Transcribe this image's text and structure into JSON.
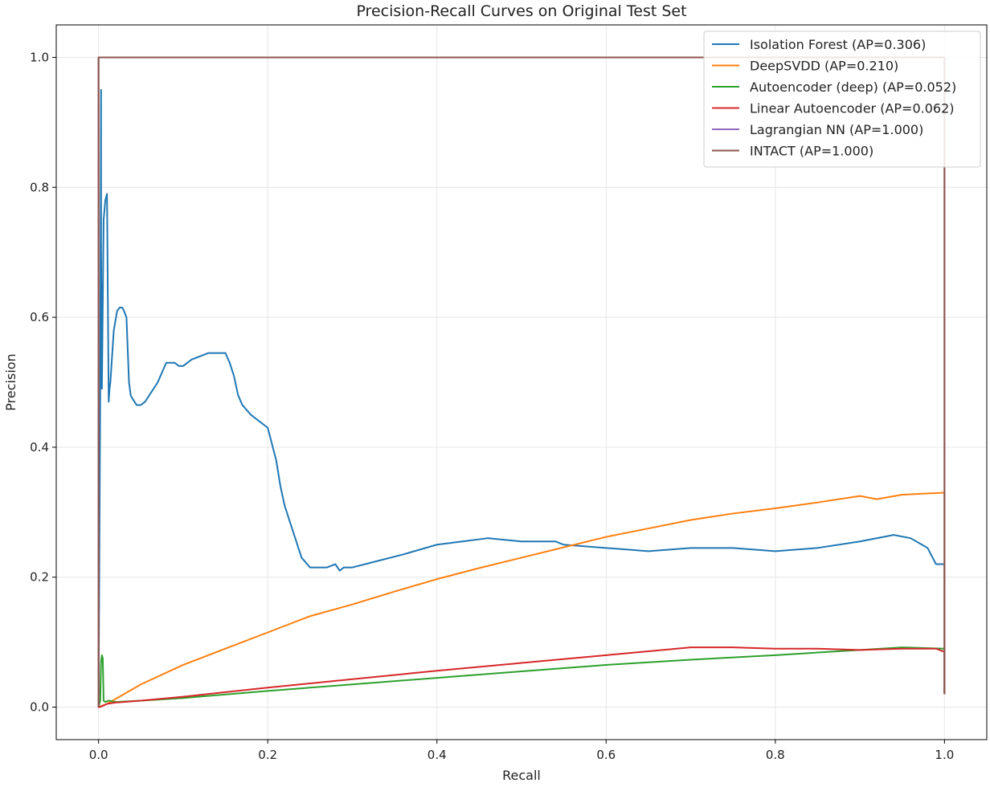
{
  "chart_data": {
    "type": "line",
    "title": "Precision-Recall Curves on Original Test Set",
    "xlabel": "Recall",
    "ylabel": "Precision",
    "xlim": [
      -0.05,
      1.05
    ],
    "ylim": [
      -0.05,
      1.05
    ],
    "xticks": [
      0.0,
      0.2,
      0.4,
      0.6,
      0.8,
      1.0
    ],
    "yticks": [
      0.0,
      0.2,
      0.4,
      0.6,
      0.8,
      1.0
    ],
    "xtick_labels": [
      "0.0",
      "0.2",
      "0.4",
      "0.6",
      "0.8",
      "1.0"
    ],
    "ytick_labels": [
      "0.0",
      "0.2",
      "0.4",
      "0.6",
      "0.8",
      "1.0"
    ],
    "grid": true,
    "legend_position": "top-right",
    "series": [
      {
        "name": "Isolation Forest (AP=0.306)",
        "color": "#1f77b4",
        "x": [
          0.0,
          0.0,
          0.002,
          0.003,
          0.003,
          0.004,
          0.006,
          0.008,
          0.01,
          0.012,
          0.013,
          0.014,
          0.015,
          0.018,
          0.022,
          0.025,
          0.028,
          0.03,
          0.033,
          0.036,
          0.038,
          0.04,
          0.045,
          0.05,
          0.055,
          0.06,
          0.07,
          0.08,
          0.09,
          0.095,
          0.1,
          0.11,
          0.12,
          0.13,
          0.14,
          0.15,
          0.155,
          0.16,
          0.165,
          0.17,
          0.18,
          0.19,
          0.2,
          0.21,
          0.215,
          0.22,
          0.225,
          0.23,
          0.24,
          0.25,
          0.26,
          0.27,
          0.28,
          0.285,
          0.29,
          0.3,
          0.33,
          0.36,
          0.4,
          0.43,
          0.46,
          0.5,
          0.54,
          0.55,
          0.6,
          0.65,
          0.7,
          0.75,
          0.8,
          0.85,
          0.9,
          0.94,
          0.96,
          0.98,
          0.99,
          1.0,
          1.0
        ],
        "y": [
          0.0,
          0.0,
          0.48,
          0.95,
          0.72,
          0.49,
          0.75,
          0.78,
          0.79,
          0.47,
          0.49,
          0.5,
          0.52,
          0.58,
          0.61,
          0.615,
          0.615,
          0.61,
          0.6,
          0.5,
          0.48,
          0.475,
          0.465,
          0.465,
          0.47,
          0.48,
          0.5,
          0.53,
          0.53,
          0.525,
          0.525,
          0.535,
          0.54,
          0.545,
          0.545,
          0.545,
          0.53,
          0.51,
          0.48,
          0.465,
          0.45,
          0.44,
          0.43,
          0.38,
          0.34,
          0.31,
          0.29,
          0.27,
          0.23,
          0.215,
          0.215,
          0.215,
          0.22,
          0.21,
          0.215,
          0.215,
          0.225,
          0.235,
          0.25,
          0.255,
          0.26,
          0.255,
          0.255,
          0.25,
          0.245,
          0.24,
          0.245,
          0.245,
          0.24,
          0.245,
          0.255,
          0.265,
          0.26,
          0.245,
          0.22,
          0.22,
          0.02
        ]
      },
      {
        "name": "DeepSVDD (AP=0.210)",
        "color": "#ff7f0e",
        "x": [
          0.0,
          0.01,
          0.05,
          0.1,
          0.15,
          0.2,
          0.25,
          0.3,
          0.35,
          0.4,
          0.45,
          0.5,
          0.55,
          0.6,
          0.65,
          0.7,
          0.75,
          0.8,
          0.85,
          0.9,
          0.92,
          0.95,
          1.0,
          1.0
        ],
        "y": [
          0.0,
          0.005,
          0.035,
          0.065,
          0.09,
          0.115,
          0.14,
          0.158,
          0.178,
          0.197,
          0.214,
          0.23,
          0.246,
          0.262,
          0.275,
          0.288,
          0.298,
          0.306,
          0.315,
          0.325,
          0.32,
          0.327,
          0.33,
          0.02
        ]
      },
      {
        "name": "Autoencoder (deep) (AP=0.052)",
        "color": "#2ca02c",
        "x": [
          0.0,
          0.002,
          0.003,
          0.004,
          0.005,
          0.006,
          0.008,
          0.012,
          0.02,
          0.05,
          0.1,
          0.2,
          0.3,
          0.4,
          0.5,
          0.6,
          0.7,
          0.8,
          0.9,
          0.95,
          1.0,
          1.0
        ],
        "y": [
          0.0,
          0.01,
          0.07,
          0.08,
          0.075,
          0.01,
          0.008,
          0.01,
          0.008,
          0.01,
          0.014,
          0.025,
          0.035,
          0.045,
          0.055,
          0.065,
          0.073,
          0.08,
          0.088,
          0.092,
          0.09,
          0.02
        ]
      },
      {
        "name": "Linear Autoencoder (AP=0.062)",
        "color": "#d62728",
        "x": [
          0.0,
          0.0,
          0.0,
          0.001,
          0.005,
          0.01,
          0.02,
          0.05,
          0.1,
          0.2,
          0.3,
          0.4,
          0.5,
          0.6,
          0.65,
          0.7,
          0.75,
          0.8,
          0.85,
          0.9,
          0.95,
          0.99,
          1.0,
          1.0
        ],
        "y": [
          1.0,
          0.0,
          0.0,
          0.0,
          0.002,
          0.005,
          0.007,
          0.01,
          0.016,
          0.03,
          0.043,
          0.056,
          0.068,
          0.08,
          0.086,
          0.092,
          0.092,
          0.09,
          0.09,
          0.088,
          0.09,
          0.09,
          0.085,
          0.02
        ]
      },
      {
        "name": "Lagrangian NN (AP=1.000)",
        "color": "#9467bd",
        "x": [
          0.0,
          0.0,
          1.0,
          1.0
        ],
        "y": [
          0.0,
          1.0,
          1.0,
          0.02
        ]
      },
      {
        "name": "INTACT (AP=1.000)",
        "color": "#8c564b",
        "x": [
          0.0,
          0.0,
          1.0,
          1.0
        ],
        "y": [
          0.0,
          1.0,
          1.0,
          0.02
        ]
      }
    ]
  }
}
